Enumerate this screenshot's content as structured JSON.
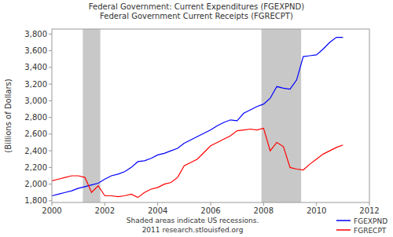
{
  "chart_data": {
    "type": "line",
    "title": "Federal Government: Current Expenditures (FGEXPND)",
    "subtitle": "Federal Government Current Receipts (FGRECPT)",
    "y_label": "(Billions of Dollars)",
    "notes": [
      "Shaded areas indicate US recessions.",
      "2011 research.stlouisfed.org"
    ],
    "x": [
      2000,
      2000.25,
      2000.5,
      2000.75,
      2001,
      2001.25,
      2001.5,
      2001.75,
      2002,
      2002.25,
      2002.5,
      2002.75,
      2003,
      2003.25,
      2003.5,
      2003.75,
      2004,
      2004.25,
      2004.5,
      2004.75,
      2005,
      2005.25,
      2005.5,
      2005.75,
      2006,
      2006.25,
      2006.5,
      2006.75,
      2007,
      2007.25,
      2007.5,
      2007.75,
      2008,
      2008.25,
      2008.5,
      2008.75,
      2009,
      2009.25,
      2009.5,
      2009.75,
      2010,
      2010.25,
      2010.5,
      2010.75,
      2011
    ],
    "series": [
      {
        "name": "FGEXPND",
        "color": "#0000ff",
        "values": [
          1860,
          1880,
          1900,
          1920,
          1950,
          1970,
          1990,
          2010,
          2060,
          2100,
          2120,
          2150,
          2200,
          2270,
          2280,
          2310,
          2350,
          2370,
          2400,
          2430,
          2490,
          2530,
          2570,
          2610,
          2650,
          2700,
          2740,
          2770,
          2760,
          2850,
          2890,
          2930,
          2960,
          3030,
          3170,
          3150,
          3140,
          3250,
          3530,
          3540,
          3550,
          3620,
          3700,
          3760,
          3760
        ]
      },
      {
        "name": "FGRECPT",
        "color": "#ff0000",
        "values": [
          2040,
          2060,
          2080,
          2100,
          2100,
          2080,
          1900,
          1980,
          1860,
          1860,
          1850,
          1860,
          1880,
          1840,
          1900,
          1940,
          1960,
          2000,
          2020,
          2080,
          2220,
          2260,
          2300,
          2380,
          2460,
          2500,
          2540,
          2580,
          2640,
          2650,
          2660,
          2650,
          2670,
          2400,
          2500,
          2450,
          2200,
          2180,
          2170,
          2240,
          2300,
          2360,
          2400,
          2440,
          2470
        ]
      }
    ],
    "recessions": [
      {
        "start": 2001.17,
        "end": 2001.83
      },
      {
        "start": 2007.92,
        "end": 2009.42
      }
    ],
    "recession_color": "#c8c8c8",
    "xlim": [
      2000,
      2012
    ],
    "xticks": [
      2000,
      2002,
      2004,
      2006,
      2008,
      2010,
      2012
    ],
    "ylim": [
      1780,
      3860
    ],
    "yticks": [
      {
        "value": 1800,
        "label": "1,800"
      },
      {
        "value": 2000,
        "label": "2,000"
      },
      {
        "value": 2200,
        "label": "2,200"
      },
      {
        "value": 2400,
        "label": "2,400"
      },
      {
        "value": 2600,
        "label": "2,600"
      },
      {
        "value": 2800,
        "label": "2,800"
      },
      {
        "value": 3000,
        "label": "3,000"
      },
      {
        "value": 3200,
        "label": "3,200"
      },
      {
        "value": 3400,
        "label": "3,400"
      },
      {
        "value": 3600,
        "label": "3,600"
      },
      {
        "value": 3800,
        "label": "3,800"
      }
    ],
    "grid": false,
    "legend": "lower right"
  }
}
